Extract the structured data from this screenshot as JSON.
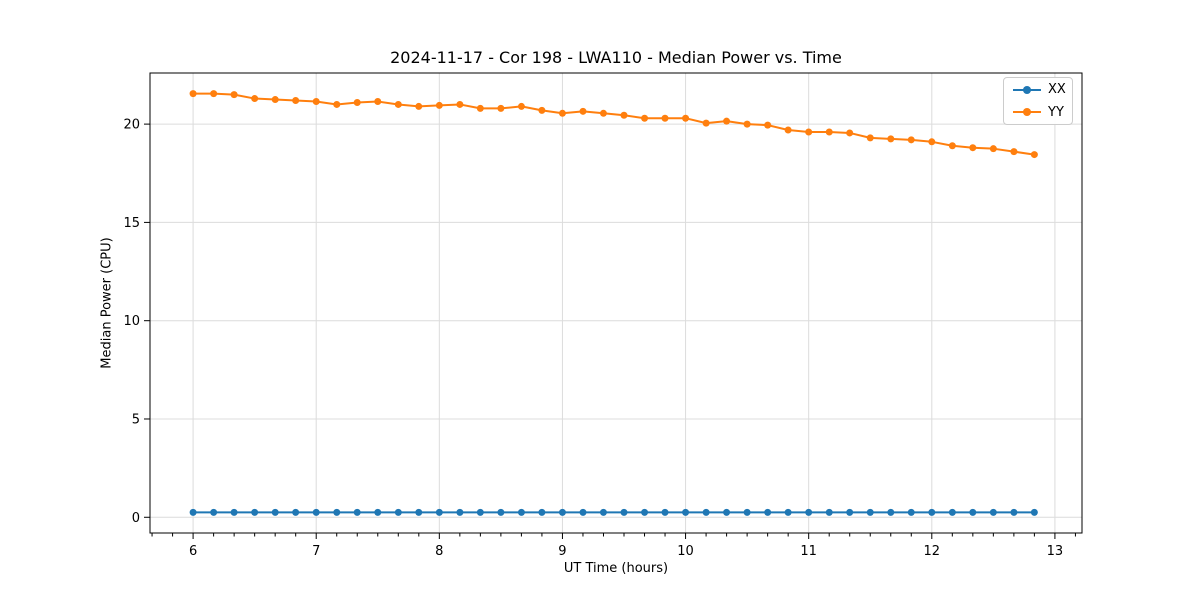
{
  "chart_data": {
    "type": "line",
    "title": "2024-11-17 - Cor 198 - LWA110 - Median Power vs. Time",
    "xlabel": "UT Time (hours)",
    "ylabel": "Median Power (CPU)",
    "xlim": [
      5.65,
      13.22
    ],
    "ylim": [
      -0.8,
      22.6
    ],
    "x_major_ticks": [
      6,
      7,
      8,
      9,
      10,
      11,
      12,
      13
    ],
    "x_minor_tick_interval_hours": 0.1667,
    "y_major_ticks": [
      0,
      5,
      10,
      15,
      20
    ],
    "grid": true,
    "grid_color": "#dcdcdc",
    "legend_position": "top-right",
    "x": [
      6.0,
      6.167,
      6.333,
      6.5,
      6.667,
      6.833,
      7.0,
      7.167,
      7.333,
      7.5,
      7.667,
      7.833,
      8.0,
      8.167,
      8.333,
      8.5,
      8.667,
      8.833,
      9.0,
      9.167,
      9.333,
      9.5,
      9.667,
      9.833,
      10.0,
      10.167,
      10.333,
      10.5,
      10.667,
      10.833,
      11.0,
      11.167,
      11.333,
      11.5,
      11.667,
      11.833,
      12.0,
      12.167,
      12.333,
      12.5,
      12.667,
      12.833
    ],
    "series": [
      {
        "name": "XX",
        "color": "#1f77b4",
        "values": [
          0.25,
          0.25,
          0.25,
          0.25,
          0.25,
          0.25,
          0.25,
          0.25,
          0.25,
          0.25,
          0.25,
          0.25,
          0.25,
          0.25,
          0.25,
          0.25,
          0.25,
          0.25,
          0.25,
          0.25,
          0.25,
          0.25,
          0.25,
          0.25,
          0.25,
          0.25,
          0.25,
          0.25,
          0.25,
          0.25,
          0.25,
          0.25,
          0.25,
          0.25,
          0.25,
          0.25,
          0.25,
          0.25,
          0.25,
          0.25,
          0.25,
          0.25
        ]
      },
      {
        "name": "YY",
        "color": "#ff7f0e",
        "values": [
          21.55,
          21.55,
          21.5,
          21.3,
          21.25,
          21.2,
          21.15,
          21.0,
          21.1,
          21.15,
          21.0,
          20.9,
          20.95,
          21.0,
          20.8,
          20.8,
          20.9,
          20.7,
          20.55,
          20.65,
          20.55,
          20.45,
          20.3,
          20.3,
          20.3,
          20.05,
          20.15,
          20.0,
          19.95,
          19.7,
          19.6,
          19.6,
          19.55,
          19.3,
          19.25,
          19.2,
          19.1,
          18.9,
          18.8,
          18.75,
          18.6,
          18.45
        ]
      }
    ]
  }
}
